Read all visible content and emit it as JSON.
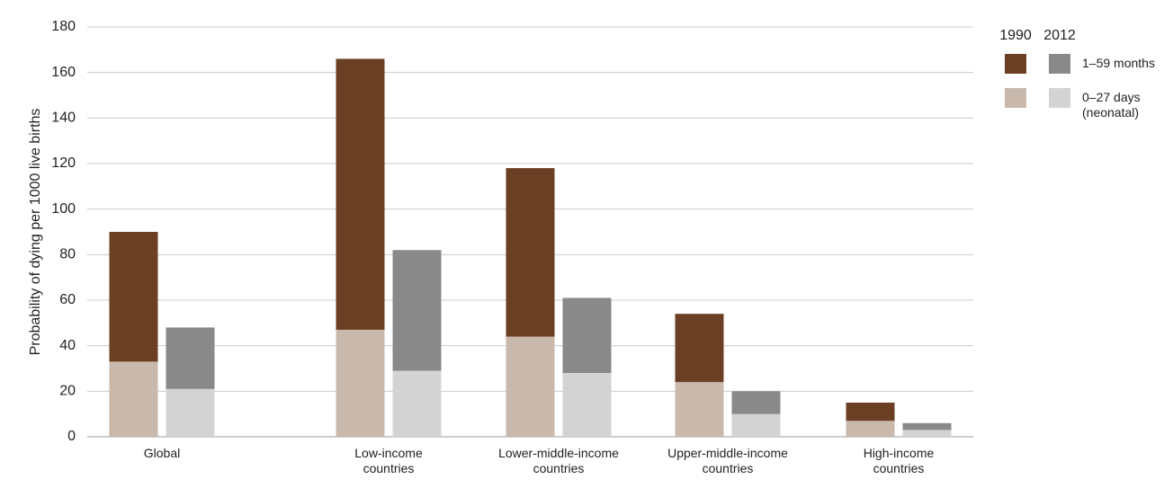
{
  "chart_data": {
    "type": "stacked-grouped-bar",
    "y_label": "Probability of dying per 1000 live births",
    "categories": [
      "Global",
      "Low-income\ncountries",
      "Lower-middle-income\ncountries",
      "Upper-middle-income\ncountries",
      "High-income\ncountries"
    ],
    "segment_names": [
      "0–27 days\n(neonatal)",
      "1–59 months"
    ],
    "series": [
      {
        "name": "1990",
        "segments": [
          {
            "color": "#c9b9ad",
            "values": [
              33,
              47,
              44,
              24,
              7
            ]
          },
          {
            "color": "#6b3f24",
            "values": [
              57,
              119,
              74,
              30,
              8
            ]
          }
        ]
      },
      {
        "name": "2012",
        "segments": [
          {
            "color": "#d3d3d3",
            "values": [
              21,
              29,
              28,
              10,
              3
            ]
          },
          {
            "color": "#898989",
            "values": [
              27,
              53,
              33,
              10,
              3
            ]
          }
        ]
      }
    ],
    "ylim": [
      0,
      180
    ],
    "yticks": [
      0,
      20,
      40,
      60,
      80,
      100,
      120,
      140,
      160,
      180
    ],
    "grid": true
  }
}
